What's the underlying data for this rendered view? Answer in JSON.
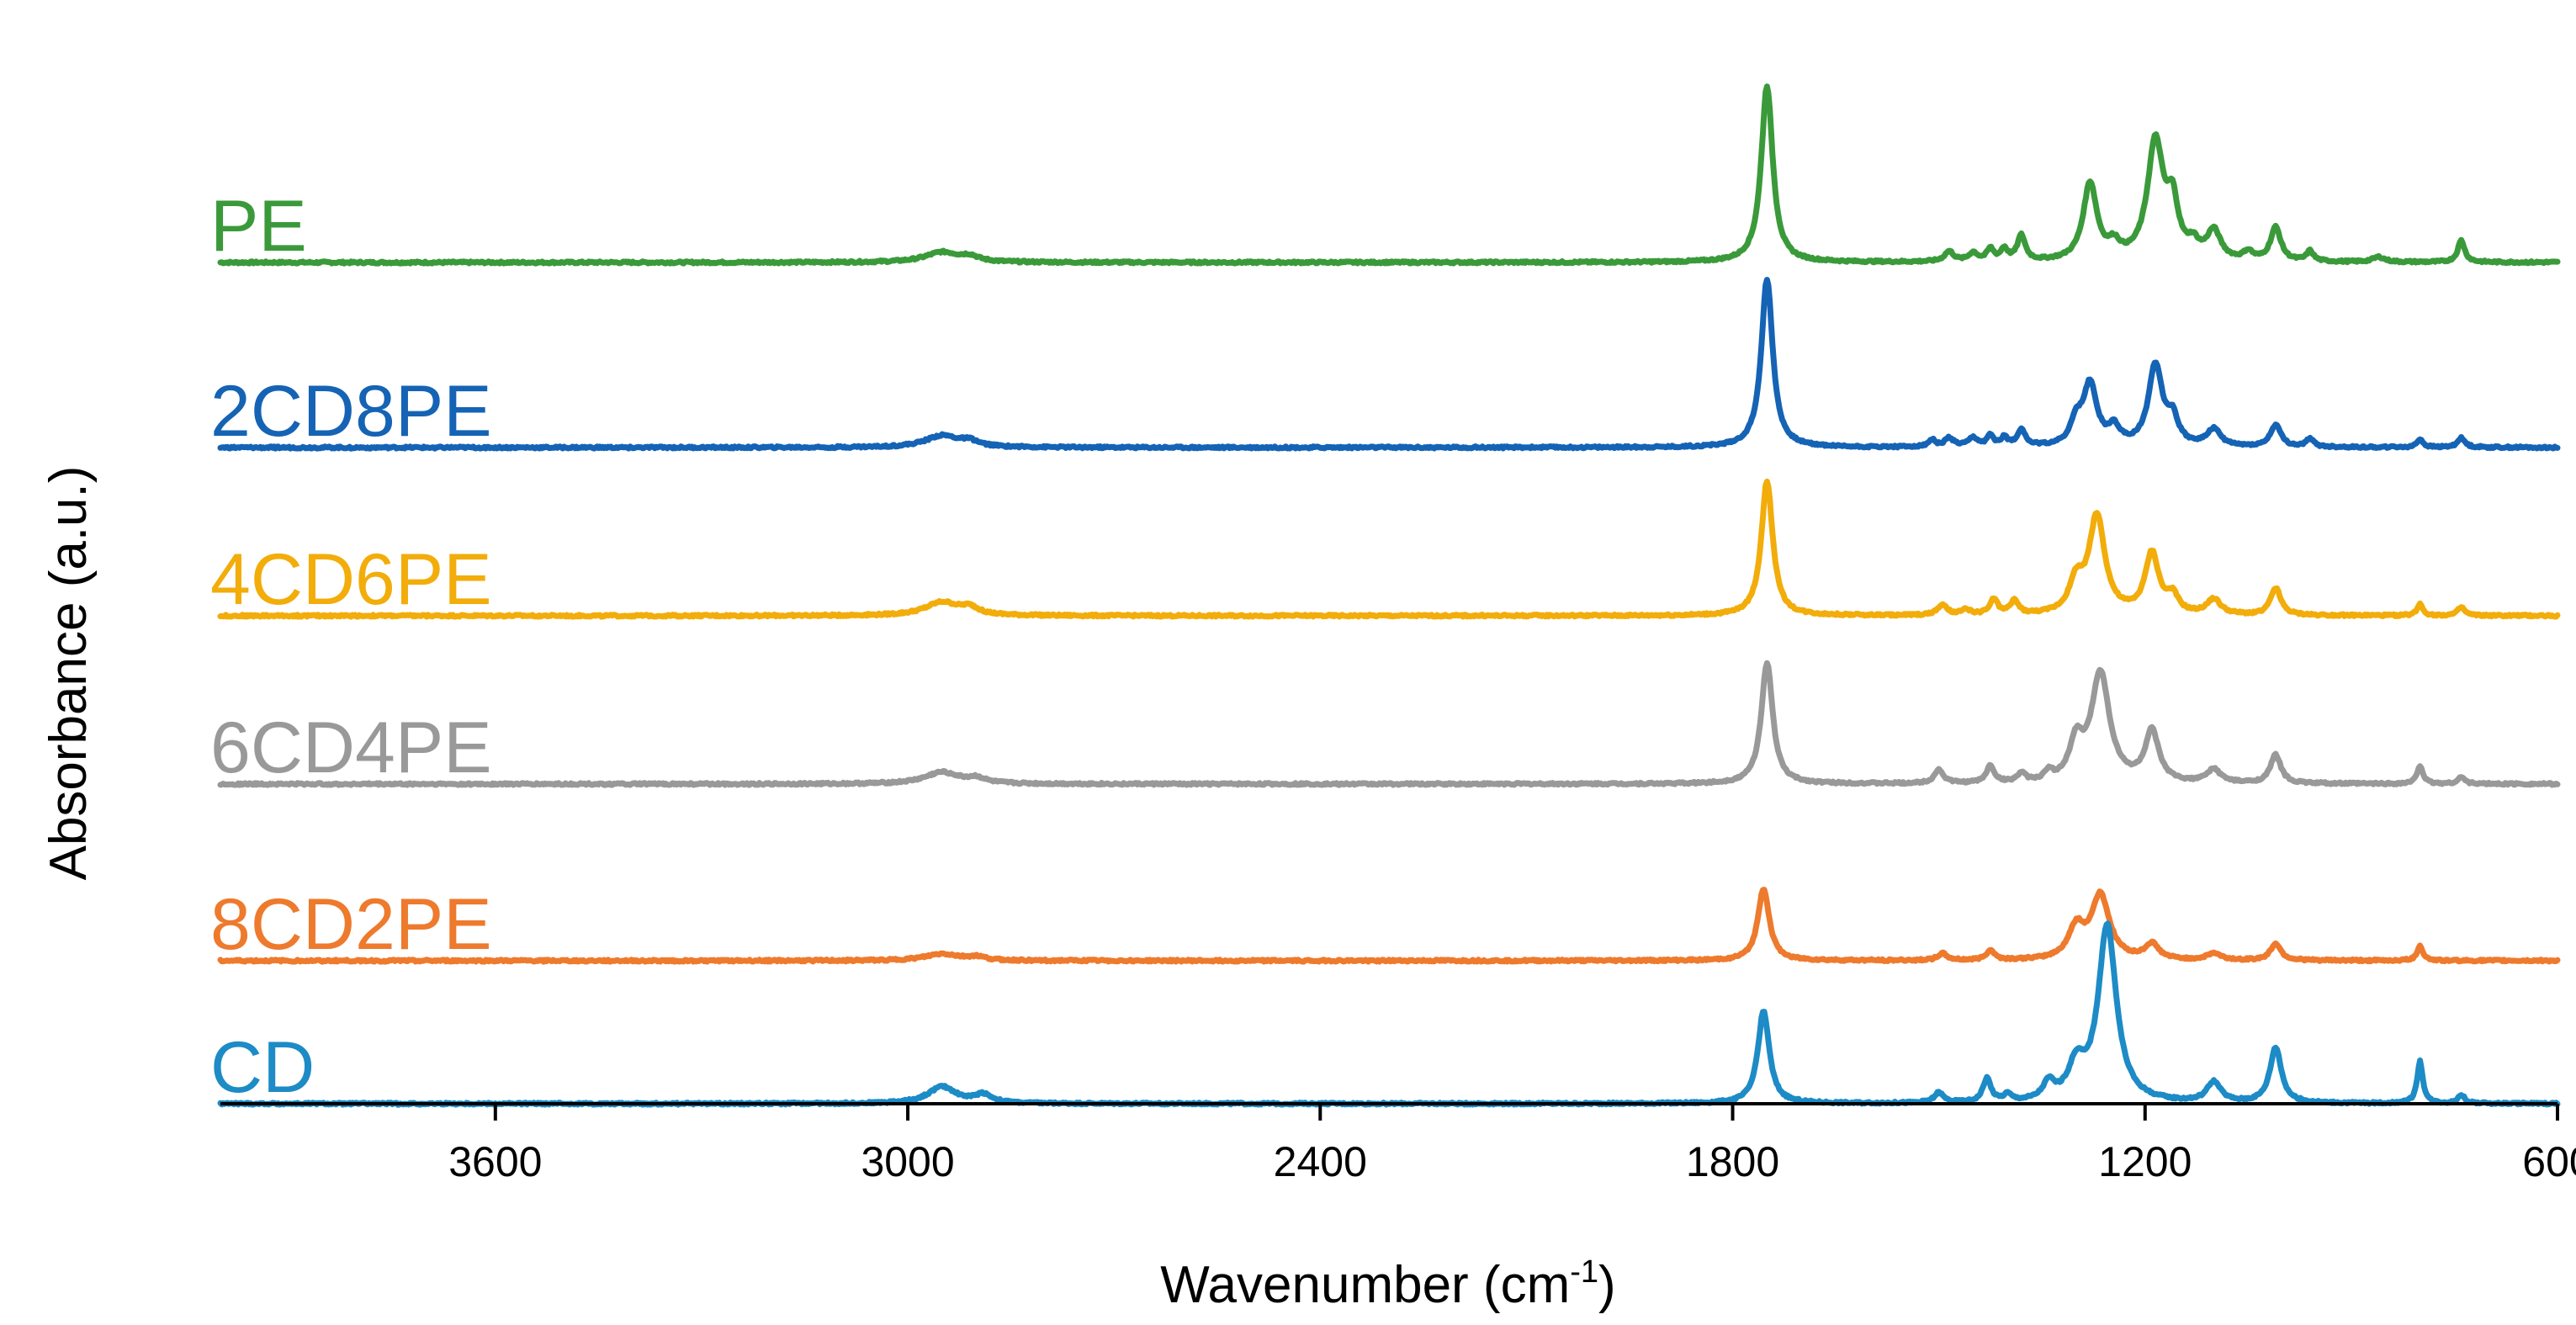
{
  "chart_data": {
    "type": "line",
    "title": "",
    "xlabel": "Wavenumber",
    "xlabel_unit_pre": " (cm",
    "xlabel_unit_sup": "-1",
    "xlabel_unit_post": ")",
    "ylabel": "Absorbance (a.u.)",
    "xlim": [
      4000,
      600
    ],
    "x_reversed": true,
    "x_ticks": [
      3600,
      3000,
      2400,
      1800,
      1200,
      600
    ],
    "y_ticks_shown": false,
    "grid": false,
    "legend": "inline labels left of each curve",
    "stacked_offset": true,
    "peaks_note_units": "wavenumber (cm-1), relative absorbance",
    "series": [
      {
        "name": "PE",
        "color": "#3a9a3a",
        "baseline": 5.0,
        "peaks": [
          [
            2950,
            0.06,
            30
          ],
          [
            2910,
            0.03,
            15
          ],
          [
            1750,
            1.05,
            10
          ],
          [
            1485,
            0.06,
            8
          ],
          [
            1450,
            0.05,
            8
          ],
          [
            1425,
            0.07,
            6
          ],
          [
            1405,
            0.07,
            6
          ],
          [
            1380,
            0.15,
            7
          ],
          [
            1280,
            0.46,
            12
          ],
          [
            1245,
            0.08,
            10
          ],
          [
            1185,
            0.7,
            14
          ],
          [
            1160,
            0.3,
            10
          ],
          [
            1130,
            0.08,
            10
          ],
          [
            1100,
            0.17,
            12
          ],
          [
            1050,
            0.05,
            8
          ],
          [
            1010,
            0.2,
            9
          ],
          [
            960,
            0.06,
            6
          ],
          [
            860,
            0.03,
            10
          ],
          [
            740,
            0.13,
            6
          ]
        ]
      },
      {
        "name": "2CD8PE",
        "color": "#1563b5",
        "baseline": 3.9,
        "peaks": [
          [
            2950,
            0.07,
            30
          ],
          [
            2910,
            0.03,
            15
          ],
          [
            1750,
            1.0,
            10
          ],
          [
            1510,
            0.04,
            6
          ],
          [
            1485,
            0.05,
            8
          ],
          [
            1450,
            0.05,
            8
          ],
          [
            1425,
            0.06,
            6
          ],
          [
            1405,
            0.05,
            6
          ],
          [
            1380,
            0.1,
            7
          ],
          [
            1300,
            0.13,
            10
          ],
          [
            1280,
            0.36,
            12
          ],
          [
            1245,
            0.1,
            10
          ],
          [
            1185,
            0.48,
            12
          ],
          [
            1160,
            0.15,
            10
          ],
          [
            1100,
            0.1,
            12
          ],
          [
            1010,
            0.13,
            9
          ],
          [
            960,
            0.05,
            6
          ],
          [
            800,
            0.05,
            5
          ],
          [
            740,
            0.06,
            6
          ]
        ]
      },
      {
        "name": "4CD6PE",
        "color": "#f2ad0b",
        "baseline": 2.9,
        "peaks": [
          [
            2950,
            0.08,
            30
          ],
          [
            2910,
            0.04,
            15
          ],
          [
            1750,
            0.8,
            10
          ],
          [
            1495,
            0.06,
            8
          ],
          [
            1460,
            0.03,
            8
          ],
          [
            1420,
            0.09,
            7
          ],
          [
            1390,
            0.08,
            7
          ],
          [
            1300,
            0.18,
            12
          ],
          [
            1270,
            0.58,
            14
          ],
          [
            1190,
            0.36,
            12
          ],
          [
            1160,
            0.1,
            10
          ],
          [
            1100,
            0.09,
            12
          ],
          [
            1010,
            0.16,
            9
          ],
          [
            800,
            0.07,
            5
          ],
          [
            740,
            0.05,
            6
          ]
        ]
      },
      {
        "name": "6CD4PE",
        "color": "#999999",
        "baseline": 1.9,
        "peaks": [
          [
            2950,
            0.07,
            30
          ],
          [
            2900,
            0.03,
            15
          ],
          [
            1750,
            0.72,
            10
          ],
          [
            1500,
            0.08,
            8
          ],
          [
            1425,
            0.1,
            7
          ],
          [
            1380,
            0.05,
            7
          ],
          [
            1340,
            0.05,
            7
          ],
          [
            1300,
            0.22,
            12
          ],
          [
            1265,
            0.65,
            16
          ],
          [
            1190,
            0.3,
            12
          ],
          [
            1100,
            0.08,
            12
          ],
          [
            1010,
            0.17,
            9
          ],
          [
            800,
            0.11,
            5
          ],
          [
            740,
            0.04,
            6
          ]
        ]
      },
      {
        "name": "8CD2PE",
        "color": "#ee7a2d",
        "baseline": 0.85,
        "peaks": [
          [
            2950,
            0.04,
            30
          ],
          [
            2900,
            0.02,
            15
          ],
          [
            1755,
            0.43,
            10
          ],
          [
            1495,
            0.04,
            8
          ],
          [
            1425,
            0.06,
            7
          ],
          [
            1300,
            0.18,
            14
          ],
          [
            1265,
            0.38,
            16
          ],
          [
            1190,
            0.09,
            12
          ],
          [
            1100,
            0.04,
            12
          ],
          [
            1010,
            0.1,
            9
          ],
          [
            800,
            0.09,
            5
          ]
        ]
      },
      {
        "name": "CD",
        "color": "#1d8bc6",
        "baseline": 0.0,
        "peaks": [
          [
            2950,
            0.1,
            25
          ],
          [
            2890,
            0.05,
            15
          ],
          [
            1755,
            0.55,
            10
          ],
          [
            1500,
            0.06,
            8
          ],
          [
            1430,
            0.14,
            7
          ],
          [
            1400,
            0.04,
            7
          ],
          [
            1340,
            0.1,
            10
          ],
          [
            1300,
            0.2,
            14
          ],
          [
            1255,
            1.05,
            16
          ],
          [
            1100,
            0.12,
            12
          ],
          [
            1010,
            0.33,
            10
          ],
          [
            800,
            0.25,
            5
          ],
          [
            740,
            0.05,
            6
          ]
        ]
      }
    ]
  }
}
